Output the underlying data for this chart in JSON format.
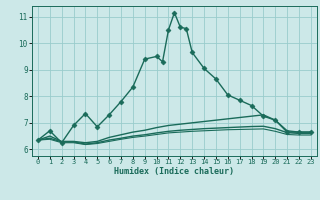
{
  "xlabel": "Humidex (Indice chaleur)",
  "bg_color": "#cce8e8",
  "grid_color": "#99cccc",
  "line_color": "#1a6b5a",
  "xlim": [
    -0.5,
    23.5
  ],
  "ylim": [
    5.75,
    11.4
  ],
  "xticks": [
    0,
    1,
    2,
    3,
    4,
    5,
    6,
    7,
    8,
    9,
    10,
    11,
    12,
    13,
    14,
    15,
    16,
    17,
    18,
    19,
    20,
    21,
    22,
    23
  ],
  "yticks": [
    6,
    7,
    8,
    9,
    10,
    11
  ],
  "series": [
    {
      "x": [
        0,
        1,
        2,
        3,
        4,
        5,
        6,
        7,
        8,
        9,
        10,
        10.5,
        11,
        11.5,
        12,
        12.5,
        13,
        14,
        15,
        16,
        17,
        18,
        19,
        20,
        21,
        22,
        23
      ],
      "y": [
        6.35,
        6.7,
        6.25,
        6.9,
        7.35,
        6.85,
        7.3,
        7.8,
        8.35,
        9.4,
        9.5,
        9.3,
        10.5,
        11.15,
        10.6,
        10.55,
        9.65,
        9.05,
        8.65,
        8.05,
        7.85,
        7.65,
        7.25,
        7.1,
        6.65,
        6.65,
        6.65
      ],
      "marker": "D",
      "markersize": 2.5,
      "markevery": [
        0,
        1,
        2,
        3,
        4,
        5,
        6,
        7,
        8,
        9,
        10,
        12,
        14,
        16,
        18,
        20,
        22,
        24,
        26
      ],
      "linewidth": 1.0
    },
    {
      "x": [
        0,
        1,
        2,
        3,
        4,
        5,
        6,
        7,
        8,
        9,
        10,
        11,
        12,
        13,
        14,
        15,
        16,
        17,
        18,
        19,
        20,
        21,
        22,
        23
      ],
      "y": [
        6.35,
        6.5,
        6.3,
        6.3,
        6.25,
        6.3,
        6.45,
        6.55,
        6.65,
        6.72,
        6.82,
        6.9,
        6.95,
        7.0,
        7.05,
        7.1,
        7.15,
        7.2,
        7.25,
        7.3,
        7.1,
        6.7,
        6.65,
        6.65
      ],
      "marker": null,
      "linewidth": 1.0
    },
    {
      "x": [
        0,
        1,
        2,
        3,
        4,
        5,
        6,
        7,
        8,
        9,
        10,
        11,
        12,
        13,
        14,
        15,
        16,
        17,
        18,
        19,
        20,
        21,
        22,
        23
      ],
      "y": [
        6.35,
        6.42,
        6.28,
        6.28,
        6.2,
        6.25,
        6.35,
        6.42,
        6.5,
        6.55,
        6.62,
        6.68,
        6.72,
        6.75,
        6.78,
        6.8,
        6.82,
        6.84,
        6.86,
        6.87,
        6.78,
        6.63,
        6.6,
        6.6
      ],
      "marker": null,
      "linewidth": 1.0
    },
    {
      "x": [
        0,
        1,
        2,
        3,
        4,
        5,
        6,
        7,
        8,
        9,
        10,
        11,
        12,
        13,
        14,
        15,
        16,
        17,
        18,
        19,
        20,
        21,
        22,
        23
      ],
      "y": [
        6.35,
        6.38,
        6.25,
        6.25,
        6.18,
        6.22,
        6.3,
        6.38,
        6.45,
        6.5,
        6.56,
        6.62,
        6.65,
        6.68,
        6.7,
        6.72,
        6.74,
        6.75,
        6.76,
        6.77,
        6.68,
        6.56,
        6.54,
        6.54
      ],
      "marker": null,
      "linewidth": 0.8
    }
  ]
}
